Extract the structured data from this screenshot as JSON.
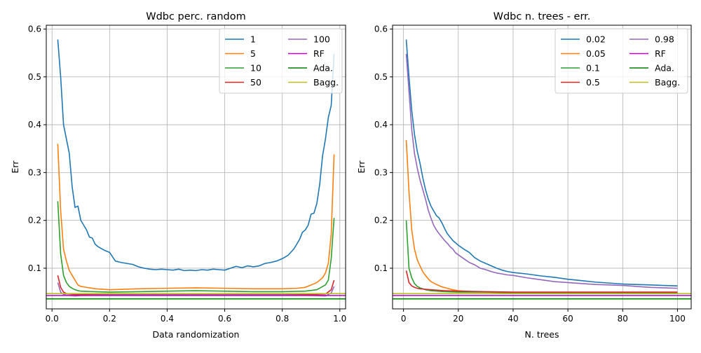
{
  "chart_data": [
    {
      "type": "line",
      "title": "Wdbc perc. random",
      "xlabel": "Data randomization",
      "ylabel": "Err",
      "xlim": [
        -0.02,
        1.02
      ],
      "ylim": [
        0.015,
        0.608
      ],
      "xticks": [
        0.0,
        0.2,
        0.4,
        0.6,
        0.8,
        1.0
      ],
      "xtick_labels": [
        "0.0",
        "0.2",
        "0.4",
        "0.6",
        "0.8",
        "1.0"
      ],
      "yticks": [
        0.1,
        0.2,
        0.3,
        0.4,
        0.5,
        0.6
      ],
      "ytick_labels": [
        "0.1",
        "0.2",
        "0.3",
        "0.4",
        "0.5",
        "0.6"
      ],
      "grid": true,
      "legend_position": "top-right",
      "legend_columns": 2,
      "series": [
        {
          "name": "1",
          "color": "#1f77b4",
          "x": [
            0.02,
            0.03,
            0.04,
            0.05,
            0.06,
            0.07,
            0.08,
            0.09,
            0.1,
            0.11,
            0.12,
            0.13,
            0.14,
            0.15,
            0.16,
            0.18,
            0.2,
            0.22,
            0.24,
            0.26,
            0.28,
            0.3,
            0.32,
            0.34,
            0.36,
            0.38,
            0.4,
            0.42,
            0.44,
            0.46,
            0.48,
            0.5,
            0.52,
            0.54,
            0.56,
            0.58,
            0.6,
            0.62,
            0.64,
            0.66,
            0.68,
            0.7,
            0.72,
            0.74,
            0.76,
            0.78,
            0.8,
            0.82,
            0.84,
            0.86,
            0.87,
            0.88,
            0.89,
            0.9,
            0.91,
            0.92,
            0.93,
            0.94,
            0.95,
            0.96,
            0.97,
            0.98
          ],
          "values": [
            0.578,
            0.5,
            0.4,
            0.37,
            0.34,
            0.27,
            0.227,
            0.23,
            0.2,
            0.19,
            0.18,
            0.165,
            0.163,
            0.15,
            0.145,
            0.138,
            0.133,
            0.115,
            0.112,
            0.11,
            0.108,
            0.103,
            0.1,
            0.098,
            0.097,
            0.098,
            0.097,
            0.096,
            0.098,
            0.095,
            0.096,
            0.095,
            0.097,
            0.096,
            0.098,
            0.097,
            0.096,
            0.1,
            0.104,
            0.101,
            0.105,
            0.103,
            0.105,
            0.11,
            0.112,
            0.115,
            0.12,
            0.127,
            0.14,
            0.16,
            0.175,
            0.18,
            0.19,
            0.213,
            0.215,
            0.235,
            0.275,
            0.335,
            0.37,
            0.415,
            0.44,
            0.548
          ]
        },
        {
          "name": "5",
          "color": "#ff7f0e",
          "x": [
            0.02,
            0.03,
            0.04,
            0.05,
            0.06,
            0.07,
            0.08,
            0.09,
            0.1,
            0.12,
            0.15,
            0.2,
            0.3,
            0.4,
            0.5,
            0.6,
            0.7,
            0.8,
            0.85,
            0.88,
            0.9,
            0.92,
            0.94,
            0.95,
            0.96,
            0.97,
            0.98
          ],
          "values": [
            0.36,
            0.22,
            0.14,
            0.115,
            0.095,
            0.085,
            0.075,
            0.065,
            0.062,
            0.06,
            0.057,
            0.055,
            0.057,
            0.058,
            0.059,
            0.058,
            0.057,
            0.057,
            0.058,
            0.06,
            0.065,
            0.07,
            0.08,
            0.09,
            0.11,
            0.17,
            0.338
          ]
        },
        {
          "name": "10",
          "color": "#2ca02c",
          "x": [
            0.02,
            0.03,
            0.04,
            0.05,
            0.06,
            0.07,
            0.08,
            0.09,
            0.1,
            0.15,
            0.2,
            0.3,
            0.4,
            0.5,
            0.6,
            0.7,
            0.8,
            0.88,
            0.92,
            0.95,
            0.96,
            0.97,
            0.98
          ],
          "values": [
            0.24,
            0.13,
            0.085,
            0.07,
            0.062,
            0.058,
            0.055,
            0.053,
            0.052,
            0.051,
            0.05,
            0.051,
            0.052,
            0.053,
            0.052,
            0.051,
            0.051,
            0.052,
            0.055,
            0.065,
            0.075,
            0.12,
            0.205
          ]
        },
        {
          "name": "50",
          "color": "#d62728",
          "x": [
            0.02,
            0.03,
            0.04,
            0.05,
            0.06,
            0.08,
            0.1,
            0.2,
            0.4,
            0.6,
            0.8,
            0.9,
            0.95,
            0.97,
            0.98
          ],
          "values": [
            0.085,
            0.06,
            0.05,
            0.047,
            0.046,
            0.045,
            0.045,
            0.045,
            0.045,
            0.045,
            0.045,
            0.045,
            0.046,
            0.055,
            0.075
          ]
        },
        {
          "name": "100",
          "color": "#9467bd",
          "x": [
            0.02,
            0.03,
            0.04,
            0.06,
            0.08,
            0.1,
            0.2,
            0.4,
            0.6,
            0.8,
            0.9,
            0.95,
            0.97,
            0.98
          ],
          "values": [
            0.07,
            0.05,
            0.045,
            0.043,
            0.042,
            0.043,
            0.044,
            0.044,
            0.044,
            0.044,
            0.043,
            0.042,
            0.048,
            0.062
          ]
        },
        {
          "name": "RF",
          "color": "#c000c0",
          "x": [
            -0.02,
            1.02
          ],
          "values": [
            0.043,
            0.043
          ]
        },
        {
          "name": "Ada.",
          "color": "#008000",
          "x": [
            -0.02,
            1.02
          ],
          "values": [
            0.036,
            0.036
          ]
        },
        {
          "name": "Bagg.",
          "color": "#bcbd22",
          "x": [
            -0.02,
            1.02
          ],
          "values": [
            0.047,
            0.047
          ]
        }
      ]
    },
    {
      "type": "line",
      "title": "Wdbc n. trees - err.",
      "xlabel": "N. trees",
      "ylabel": "Err",
      "xlim": [
        -4,
        105
      ],
      "ylim": [
        0.015,
        0.608
      ],
      "xticks": [
        0,
        20,
        40,
        60,
        80,
        100
      ],
      "xtick_labels": [
        "0",
        "20",
        "40",
        "60",
        "80",
        "100"
      ],
      "yticks": [
        0.1,
        0.2,
        0.3,
        0.4,
        0.5,
        0.6
      ],
      "ytick_labels": [
        "0.1",
        "0.2",
        "0.3",
        "0.4",
        "0.5",
        "0.6"
      ],
      "grid": true,
      "legend_position": "top-right",
      "legend_columns": 2,
      "series": [
        {
          "name": "0.02",
          "color": "#1f77b4",
          "x": [
            1,
            2,
            3,
            4,
            5,
            6,
            7,
            8,
            9,
            10,
            11,
            12,
            13,
            14,
            15,
            16,
            17,
            18,
            19,
            20,
            22,
            24,
            26,
            28,
            30,
            32,
            34,
            36,
            38,
            40,
            45,
            50,
            55,
            60,
            65,
            70,
            75,
            80,
            85,
            90,
            95,
            100
          ],
          "values": [
            0.578,
            0.5,
            0.43,
            0.38,
            0.345,
            0.32,
            0.29,
            0.265,
            0.245,
            0.23,
            0.22,
            0.21,
            0.205,
            0.195,
            0.183,
            0.172,
            0.165,
            0.158,
            0.153,
            0.148,
            0.14,
            0.133,
            0.122,
            0.115,
            0.11,
            0.105,
            0.1,
            0.096,
            0.093,
            0.091,
            0.088,
            0.084,
            0.081,
            0.077,
            0.074,
            0.071,
            0.069,
            0.067,
            0.066,
            0.065,
            0.064,
            0.063
          ]
        },
        {
          "name": "0.05",
          "color": "#ff7f0e",
          "x": [
            1,
            2,
            3,
            4,
            5,
            6,
            7,
            8,
            9,
            10,
            12,
            14,
            16,
            18,
            20,
            25,
            30,
            40,
            50,
            60,
            70,
            80,
            90,
            100
          ],
          "values": [
            0.368,
            0.26,
            0.18,
            0.14,
            0.118,
            0.105,
            0.093,
            0.085,
            0.078,
            0.072,
            0.066,
            0.061,
            0.058,
            0.055,
            0.053,
            0.051,
            0.05,
            0.049,
            0.049,
            0.049,
            0.048,
            0.048,
            0.048,
            0.048
          ]
        },
        {
          "name": "0.1",
          "color": "#2ca02c",
          "x": [
            1,
            2,
            3,
            4,
            5,
            6,
            7,
            8,
            10,
            15,
            20,
            30,
            40,
            60,
            80,
            100
          ],
          "values": [
            0.2,
            0.1,
            0.08,
            0.068,
            0.062,
            0.059,
            0.057,
            0.055,
            0.053,
            0.051,
            0.05,
            0.05,
            0.049,
            0.049,
            0.049,
            0.048
          ]
        },
        {
          "name": "0.5",
          "color": "#d62728",
          "x": [
            1,
            2,
            3,
            4,
            5,
            6,
            8,
            10,
            15,
            20,
            30,
            40,
            60,
            80,
            100
          ],
          "values": [
            0.095,
            0.07,
            0.063,
            0.06,
            0.058,
            0.057,
            0.056,
            0.055,
            0.053,
            0.052,
            0.051,
            0.05,
            0.05,
            0.05,
            0.05
          ]
        },
        {
          "name": "0.98",
          "color": "#9467bd",
          "x": [
            1,
            2,
            3,
            4,
            5,
            6,
            7,
            8,
            9,
            10,
            11,
            12,
            13,
            14,
            15,
            16,
            17,
            18,
            19,
            20,
            22,
            24,
            26,
            28,
            30,
            32,
            34,
            36,
            38,
            40,
            45,
            50,
            55,
            60,
            65,
            70,
            75,
            80,
            85,
            90,
            95,
            100
          ],
          "values": [
            0.548,
            0.47,
            0.39,
            0.34,
            0.31,
            0.285,
            0.265,
            0.245,
            0.222,
            0.205,
            0.19,
            0.18,
            0.172,
            0.165,
            0.158,
            0.152,
            0.145,
            0.14,
            0.132,
            0.128,
            0.12,
            0.112,
            0.107,
            0.1,
            0.097,
            0.093,
            0.09,
            0.088,
            0.086,
            0.085,
            0.08,
            0.076,
            0.072,
            0.07,
            0.068,
            0.066,
            0.065,
            0.064,
            0.062,
            0.06,
            0.059,
            0.058
          ]
        },
        {
          "name": "RF",
          "color": "#c000c0",
          "x": [
            -4,
            105
          ],
          "values": [
            0.043,
            0.043
          ]
        },
        {
          "name": "Ada.",
          "color": "#008000",
          "x": [
            -4,
            105
          ],
          "values": [
            0.036,
            0.036
          ]
        },
        {
          "name": "Bagg.",
          "color": "#bcbd22",
          "x": [
            -4,
            105
          ],
          "values": [
            0.047,
            0.047
          ]
        }
      ]
    }
  ]
}
